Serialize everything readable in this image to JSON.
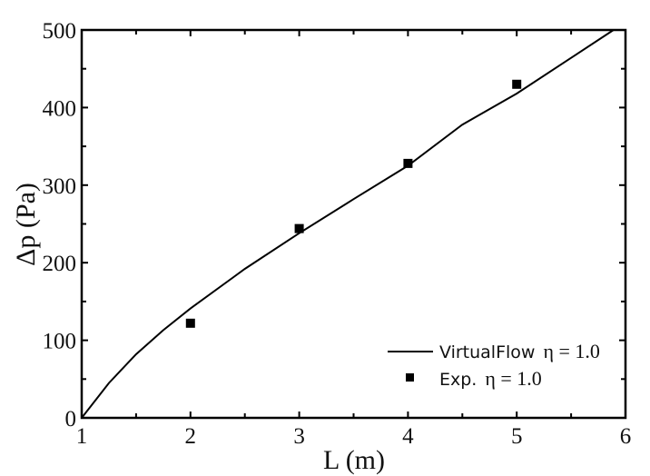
{
  "chart_data": {
    "type": "line",
    "title": "",
    "xlabel": "L (m)",
    "ylabel": "Δp (Pa)",
    "xlim": [
      1,
      6
    ],
    "ylim": [
      0,
      500
    ],
    "x_ticks": [
      1,
      2,
      3,
      4,
      5,
      6
    ],
    "y_ticks": [
      0,
      100,
      200,
      300,
      400,
      500
    ],
    "x_tick_labels": [
      "1",
      "2",
      "3",
      "4",
      "5",
      "6"
    ],
    "y_tick_labels": [
      "0",
      "100",
      "200",
      "300",
      "400",
      "500"
    ],
    "grid": false,
    "legend_position": "lower right",
    "series": [
      {
        "name": "VirtualFlow η = 1.0",
        "legend_prefix": "VirtualFlow",
        "legend_suffix": "η = 1.0",
        "kind": "line",
        "color": "#000000",
        "x": [
          1.0,
          1.25,
          1.5,
          1.75,
          2.0,
          2.5,
          3.0,
          3.5,
          4.0,
          4.5,
          5.0,
          5.5,
          5.89
        ],
        "y": [
          0,
          45,
          82,
          113,
          141,
          192,
          238,
          282,
          325,
          378,
          418,
          464,
          500
        ]
      },
      {
        "name": "Exp. η = 1.0",
        "legend_prefix": "Exp.",
        "legend_suffix": "η = 1.0",
        "kind": "scatter",
        "marker": "square",
        "color": "#000000",
        "x": [
          2,
          3,
          4,
          5
        ],
        "y": [
          122,
          244,
          328,
          430
        ]
      }
    ]
  }
}
